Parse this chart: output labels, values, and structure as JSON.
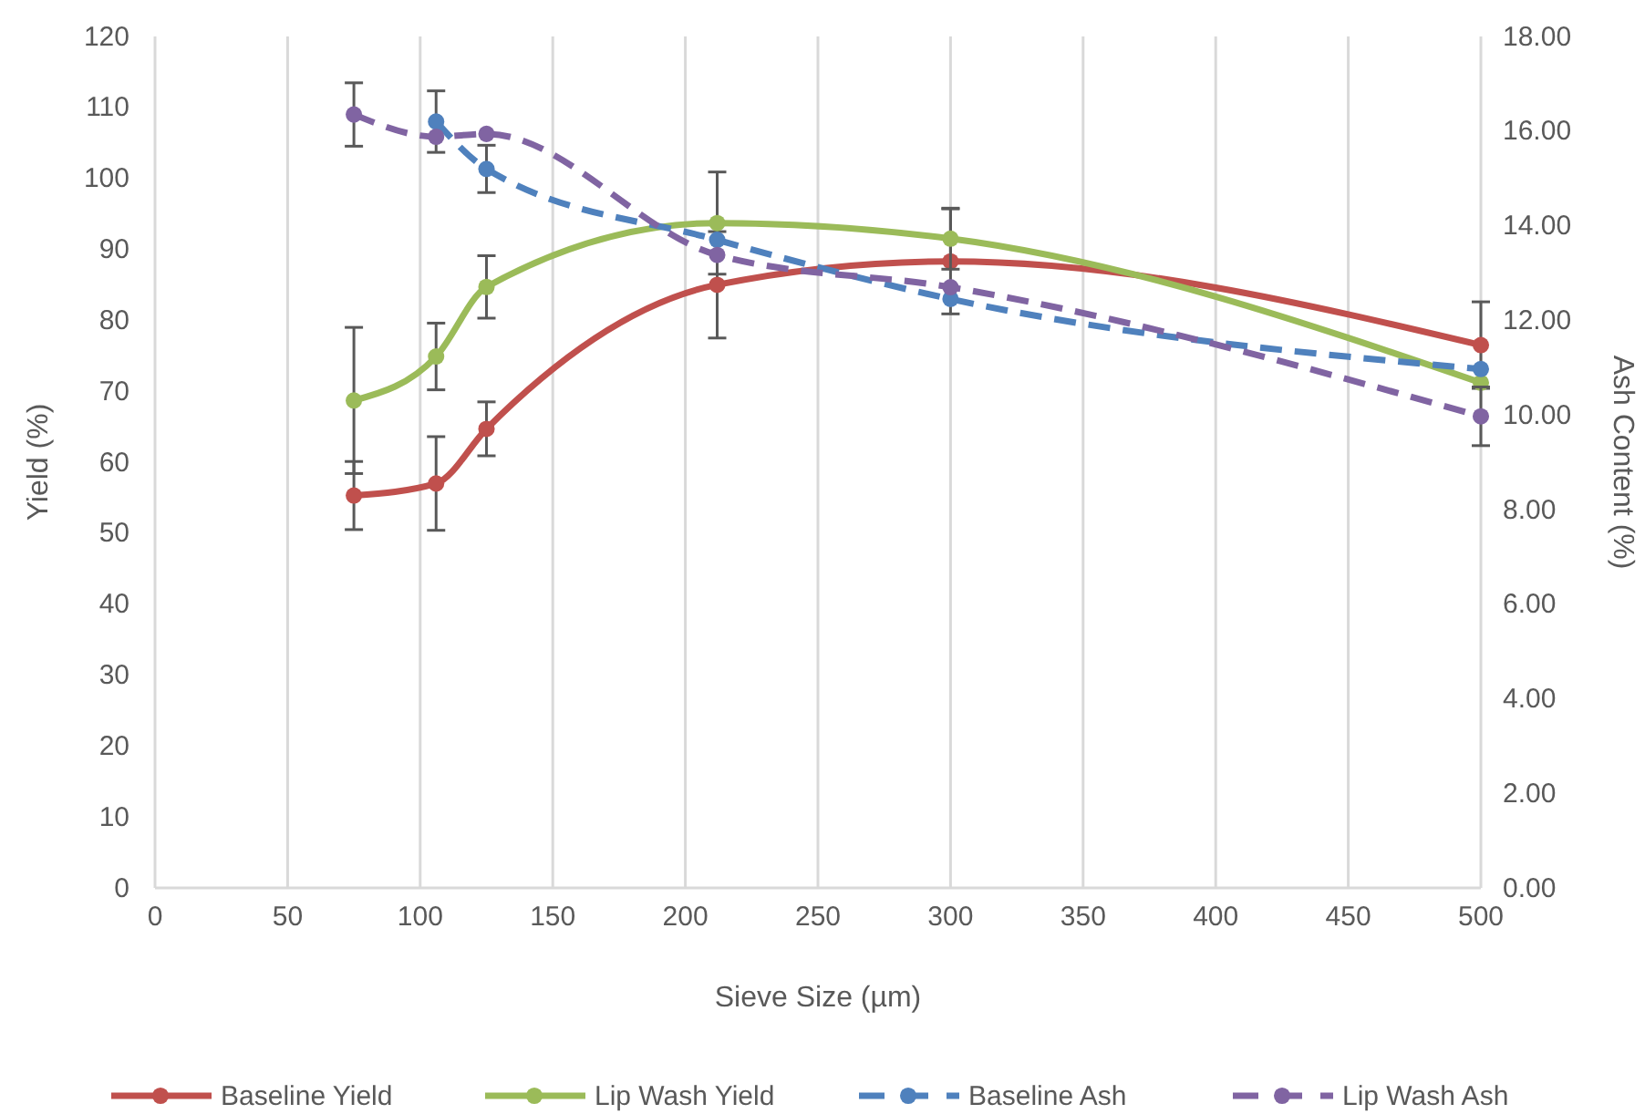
{
  "chart_data": {
    "type": "line",
    "xlabel": "Sieve Size (µm)",
    "ylabel": "Yield (%)",
    "y2label": "Ash Content (%)",
    "xlim": [
      0,
      500
    ],
    "xticks": [
      0,
      50,
      100,
      150,
      200,
      250,
      300,
      350,
      400,
      450,
      500
    ],
    "ylim": [
      0,
      120
    ],
    "yticks": [
      0,
      10,
      20,
      30,
      40,
      50,
      60,
      70,
      80,
      90,
      100,
      110,
      120
    ],
    "y2lim": [
      0,
      18
    ],
    "y2ticks": [
      {
        "value": 0,
        "label": "0.00"
      },
      {
        "value": 2,
        "label": "2.00"
      },
      {
        "value": 4,
        "label": "4.00"
      },
      {
        "value": 6,
        "label": "6.00"
      },
      {
        "value": 8,
        "label": "8.00"
      },
      {
        "value": 10,
        "label": "10.00"
      },
      {
        "value": 12,
        "label": "12.00"
      },
      {
        "value": 14,
        "label": "14.00"
      },
      {
        "value": 16,
        "label": "16.00"
      },
      {
        "value": 18,
        "label": "18.00"
      }
    ],
    "x": [
      75,
      106,
      125,
      212,
      300,
      500
    ],
    "grid": "x",
    "legend": "bottom",
    "marker": "circle",
    "series": [
      {
        "name": "Baseline Yield",
        "color": "#c0504d",
        "line_style": "solid",
        "values": [
          55.3,
          57.0,
          64.7,
          85.0,
          88.3,
          76.5
        ],
        "errors": [
          4.8,
          6.6,
          3.8,
          7.5,
          7.4,
          6.1
        ]
      },
      {
        "name": "Lip Wash Yield",
        "color": "#9bbb59",
        "line_style": "solid",
        "values": [
          68.7,
          74.9,
          84.7,
          93.7,
          91.5,
          71.2
        ],
        "errors": [
          10.3,
          4.7,
          4.4,
          7.2,
          4.3,
          null
        ]
      },
      {
        "name": "Baseline Ash",
        "color": "#4f81bd",
        "line_style": "dashed",
        "axis": "y2",
        "values": [
          null,
          16.2,
          15.2,
          13.7,
          12.45,
          10.97
        ],
        "errors": [
          null,
          0.65,
          0.5,
          null,
          null,
          null
        ]
      },
      {
        "name": "Lip Wash Ash",
        "color": "#8064a2",
        "line_style": "dashed",
        "axis": "y2",
        "values": [
          16.35,
          15.88,
          15.94,
          13.38,
          12.7,
          9.97
        ],
        "errors": [
          0.67,
          null,
          null,
          null,
          null,
          0.62
        ]
      }
    ]
  }
}
